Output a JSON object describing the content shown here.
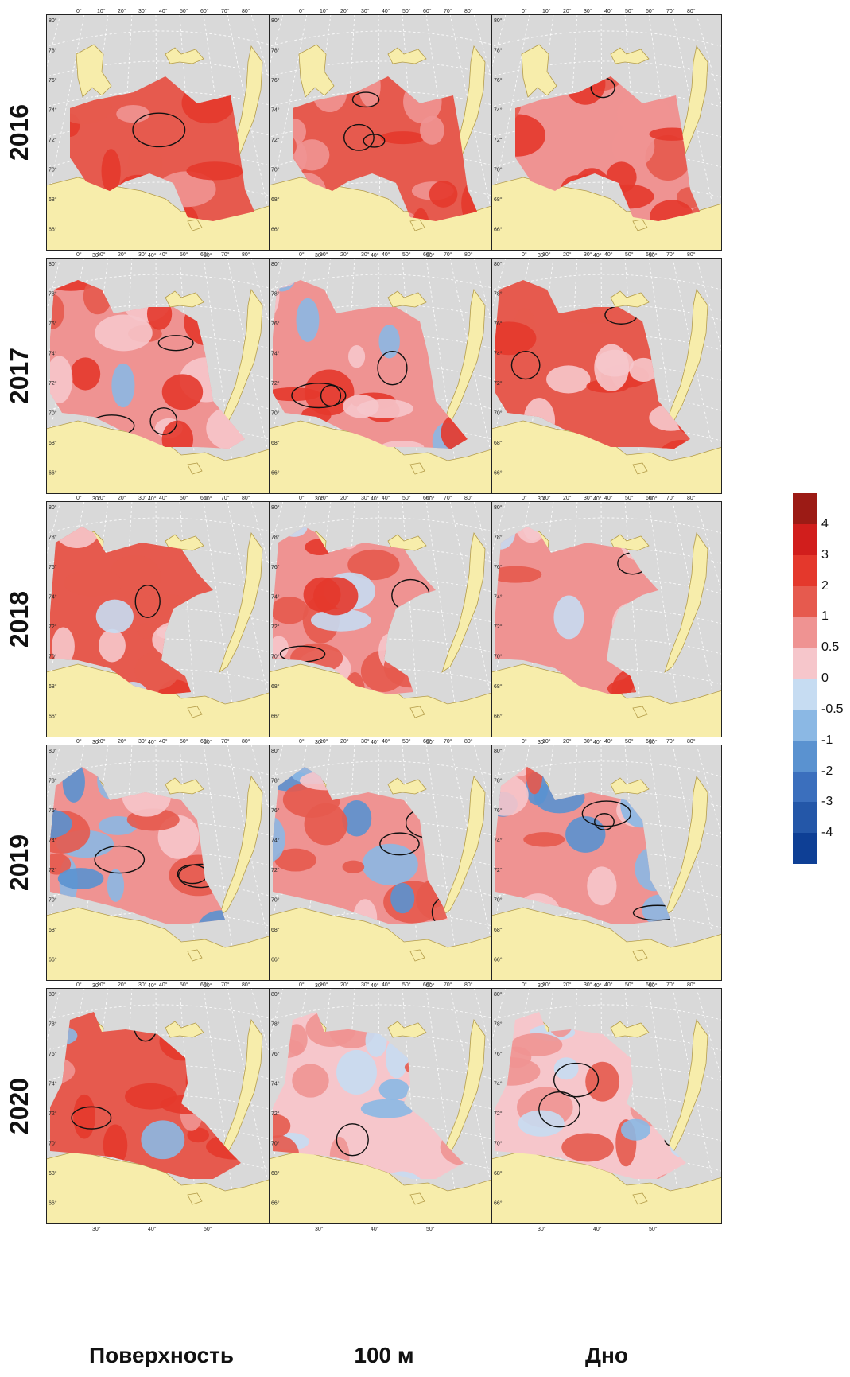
{
  "row_labels": [
    "2016",
    "2017",
    "2018",
    "2019",
    "2020"
  ],
  "column_labels": [
    "Поверхность",
    "100 м",
    "Дно"
  ],
  "latitude_labels": [
    "80°",
    "78°",
    "76°",
    "74°",
    "72°",
    "70°",
    "68°",
    "66°"
  ],
  "longitude_labels_top": [
    "0°",
    "10°",
    "20°",
    "30°",
    "40°",
    "50°",
    "60°",
    "70°",
    "80°"
  ],
  "longitude_labels_bottom": [
    "30°",
    "40°",
    "50°"
  ],
  "colorbar": {
    "ticks": [
      "4",
      "3",
      "2",
      "1",
      "0.5",
      "0",
      "-0.5",
      "-1",
      "-2",
      "-3",
      "-4"
    ],
    "colors": [
      "#9c1b15",
      "#d11e1c",
      "#e4382c",
      "#e65a4e",
      "#ef9392",
      "#f6c6cb",
      "#c6dcf2",
      "#8bb8e4",
      "#5a92d0",
      "#3b6fbd",
      "#2457a8",
      "#0e3f95"
    ]
  },
  "colors": {
    "sea_background": "#d9d9d9",
    "land": "#f7edab",
    "coastline": "#b59d4a",
    "grid": "#ffffff",
    "zero_isoline": "#111111"
  }
}
